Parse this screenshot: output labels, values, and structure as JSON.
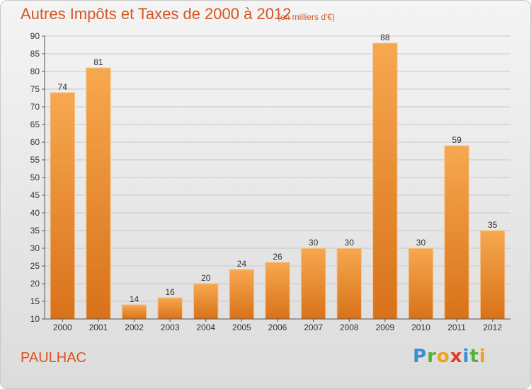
{
  "header": {
    "title": "Autres Impôts et Taxes de 2000 à 2012",
    "subtitle": "(en milliers d'€)"
  },
  "footer": {
    "commune": "PAULHAC",
    "logo_text": "Proxiti"
  },
  "chart_data": {
    "type": "bar",
    "title": "Autres Impôts et Taxes de 2000 à 2012",
    "subtitle": "(en milliers d'€)",
    "categories": [
      "2000",
      "2001",
      "2002",
      "2003",
      "2004",
      "2005",
      "2006",
      "2007",
      "2008",
      "2009",
      "2010",
      "2011",
      "2012"
    ],
    "values": [
      74,
      81,
      14,
      16,
      20,
      24,
      26,
      30,
      30,
      88,
      30,
      59,
      35
    ],
    "ylim": [
      10,
      90
    ],
    "yticks": [
      10,
      15,
      20,
      25,
      30,
      35,
      40,
      45,
      50,
      55,
      60,
      65,
      70,
      75,
      80,
      85,
      90
    ],
    "grid": true,
    "data_labels": true,
    "colors": {
      "bar_light": "#f7a84f",
      "bar_dark": "#d8721a",
      "grid": "#c8c8c8",
      "axis": "#555555",
      "text_accent": "#d9541f"
    }
  }
}
